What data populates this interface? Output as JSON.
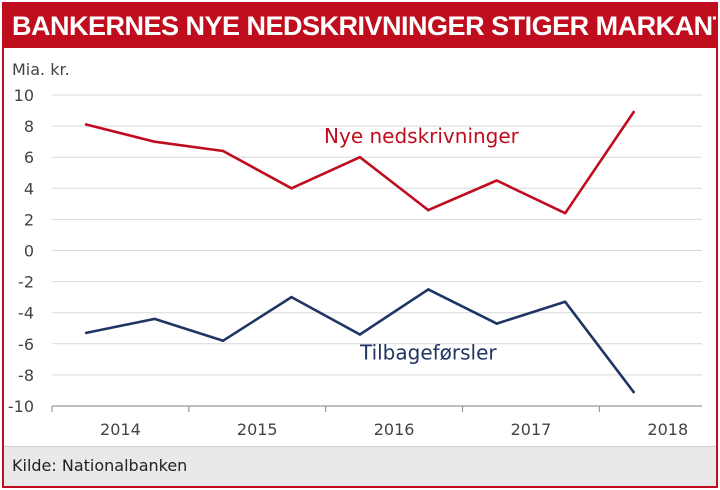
{
  "title": "BANKERNES NYE NEDSKRIVNINGER STIGER MARKANT",
  "source": "Kilde: Nationalbanken",
  "colors": {
    "accent": "#c00d1e",
    "series_red": "#c00d1e",
    "series_blue": "#1f3564",
    "grid": "#d9d9d9"
  },
  "chart_data": {
    "type": "line",
    "ylabel": "Mia. kr.",
    "ylim": [
      -10,
      10
    ],
    "yticks": [
      10,
      8,
      6,
      4,
      2,
      0,
      -2,
      -4,
      -6,
      -8,
      -10
    ],
    "ytick_labels": [
      "10",
      "8",
      "6",
      "4",
      "2",
      "0",
      "-2",
      "-4",
      "-6",
      "-8",
      "-10"
    ],
    "xlim": [
      2014,
      2018.75
    ],
    "xtick_labels": [
      {
        "label": "2014",
        "x": 2014.5
      },
      {
        "label": "2015",
        "x": 2015.5
      },
      {
        "label": "2016",
        "x": 2016.5
      },
      {
        "label": "2017",
        "x": 2017.5
      },
      {
        "label": "2018",
        "x": 2018.5
      }
    ],
    "x_boundaries": [
      2014,
      2015,
      2016,
      2017,
      2018
    ],
    "x": [
      2014.25,
      2014.75,
      2015.25,
      2015.75,
      2016.25,
      2016.75,
      2017.25,
      2017.75,
      2018.25
    ],
    "series": [
      {
        "name": "Nye nedskrivninger",
        "color": "#c00d1e",
        "values": [
          8.1,
          7.0,
          6.4,
          4.0,
          6.0,
          2.6,
          4.5,
          2.4,
          8.9
        ],
        "label_anchor": {
          "x": 2016.7,
          "y": 6.9
        }
      },
      {
        "name": "Tilbageførsler",
        "color": "#1f3564",
        "values": [
          -5.3,
          -4.4,
          -5.8,
          -3.0,
          -5.4,
          -2.5,
          -4.7,
          -3.3,
          -9.1
        ],
        "label_anchor": {
          "x": 2016.75,
          "y": -7.0
        }
      }
    ]
  }
}
